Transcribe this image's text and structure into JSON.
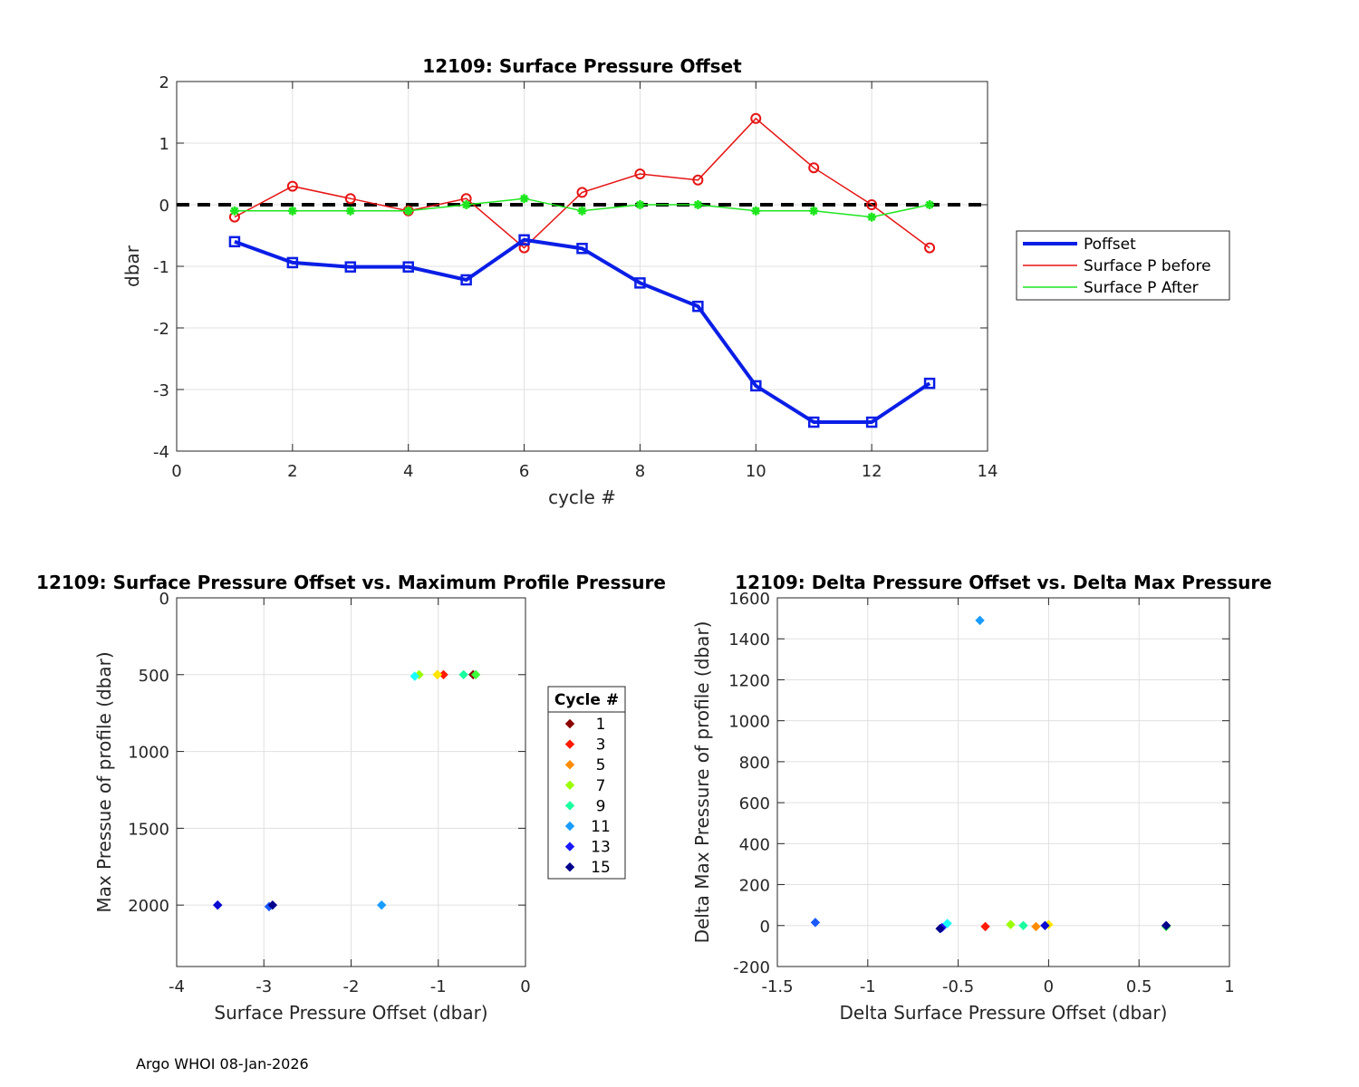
{
  "footer": "Argo WHOI 08-Jan-2026",
  "chart_data": [
    {
      "type": "line",
      "title": "12109: Surface Pressure Offset",
      "xlabel": "cycle #",
      "ylabel": "dbar",
      "xlim": [
        0,
        14
      ],
      "ylim": [
        -4,
        2
      ],
      "xticks": [
        0,
        2,
        4,
        6,
        8,
        10,
        12,
        14
      ],
      "yticks": [
        -4,
        -3,
        -2,
        -1,
        0,
        1,
        2
      ],
      "grid": true,
      "legend_position": "outside-right",
      "x": [
        1,
        2,
        3,
        4,
        5,
        6,
        7,
        8,
        9,
        10,
        11,
        12,
        13
      ],
      "zero_line": {
        "y": 0,
        "color": "#000000",
        "style": "dashed"
      },
      "series": [
        {
          "name": "Poffset",
          "color": "#0a1ee6",
          "marker": "square",
          "values": [
            -0.6,
            -0.94,
            -1.01,
            -1.01,
            -1.22,
            -0.57,
            -0.71,
            -1.27,
            -1.65,
            -2.94,
            -3.53,
            -3.53,
            -2.9
          ]
        },
        {
          "name": "Surface P before",
          "color": "#e61414",
          "marker": "diamond",
          "values": [
            -0.2,
            0.3,
            0.1,
            -0.1,
            0.1,
            -0.7,
            0.2,
            0.5,
            0.4,
            1.4,
            0.6,
            0.0,
            -0.7
          ]
        },
        {
          "name": "Surface P After",
          "color": "#1ee61e",
          "marker": "star",
          "values": [
            -0.1,
            -0.1,
            -0.1,
            -0.1,
            0.0,
            0.1,
            -0.1,
            0.0,
            0.0,
            -0.1,
            -0.1,
            -0.2,
            0.0
          ]
        }
      ]
    },
    {
      "type": "scatter",
      "title": "12109: Surface Pressure Offset vs. Maximum Profile Pressure",
      "xlabel": "Surface Pressure Offset (dbar)",
      "ylabel": "Max Pressue of profile (dbar)",
      "xlim": [
        -4,
        0
      ],
      "ylim": [
        0,
        2400
      ],
      "y_reversed": true,
      "xticks": [
        -4,
        -3,
        -2,
        -1,
        0
      ],
      "yticks": [
        0,
        500,
        1000,
        1500,
        2000
      ],
      "grid": true,
      "legend_title": "Cycle #",
      "legend_position": "outside-right",
      "legend_entries": [
        {
          "label": "1",
          "color": "#8b0000"
        },
        {
          "label": "3",
          "color": "#ff1a00"
        },
        {
          "label": "5",
          "color": "#ff8c00"
        },
        {
          "label": "7",
          "color": "#9aff00"
        },
        {
          "label": "9",
          "color": "#1affa0"
        },
        {
          "label": "11",
          "color": "#1a9cff"
        },
        {
          "label": "13",
          "color": "#1a1aff"
        },
        {
          "label": "15",
          "color": "#00008b"
        }
      ],
      "points": [
        {
          "x": -0.6,
          "y": 500,
          "color": "#8b0000"
        },
        {
          "x": -0.94,
          "y": 500,
          "color": "#ff1a00"
        },
        {
          "x": -1.01,
          "y": 500,
          "color": "#ff8c00"
        },
        {
          "x": -1.01,
          "y": 500,
          "color": "#ffe600"
        },
        {
          "x": -1.22,
          "y": 500,
          "color": "#9aff00"
        },
        {
          "x": -0.57,
          "y": 500,
          "color": "#3cff3c"
        },
        {
          "x": -0.71,
          "y": 500,
          "color": "#1affa0"
        },
        {
          "x": -1.27,
          "y": 510,
          "color": "#1affff"
        },
        {
          "x": -1.65,
          "y": 2000,
          "color": "#1a9cff"
        },
        {
          "x": -2.94,
          "y": 2010,
          "color": "#1a5aff"
        },
        {
          "x": -3.53,
          "y": 2000,
          "color": "#1a1aff"
        },
        {
          "x": -3.53,
          "y": 2000,
          "color": "#0a0ad2"
        },
        {
          "x": -2.9,
          "y": 2000,
          "color": "#00008b"
        }
      ]
    },
    {
      "type": "scatter",
      "title": "12109: Delta Pressure Offset vs. Delta Max Pressure",
      "xlabel": "Delta Surface Pressure Offset (dbar)",
      "ylabel": "Delta Max Pressure of profile (dbar)",
      "xlim": [
        -1.5,
        1
      ],
      "ylim": [
        -200,
        1600
      ],
      "xticks": [
        -1.5,
        -1,
        -0.5,
        0,
        0.5,
        1
      ],
      "xtick_labels": [
        "-1.5",
        "-1",
        "-0.5",
        "0",
        "0.5",
        "1"
      ],
      "yticks": [
        -200,
        0,
        200,
        400,
        600,
        800,
        1000,
        1200,
        1400,
        1600
      ],
      "grid": true,
      "points": [
        {
          "x": -0.35,
          "y": -5,
          "color": "#ff1a00"
        },
        {
          "x": -0.07,
          "y": -5,
          "color": "#ff8c00"
        },
        {
          "x": 0.0,
          "y": 5,
          "color": "#ffe600"
        },
        {
          "x": -0.21,
          "y": 5,
          "color": "#9aff00"
        },
        {
          "x": 0.65,
          "y": -5,
          "color": "#3cff3c"
        },
        {
          "x": -0.14,
          "y": 0,
          "color": "#1affa0"
        },
        {
          "x": -0.56,
          "y": 10,
          "color": "#1affff"
        },
        {
          "x": -0.38,
          "y": 1490,
          "color": "#1a9cff"
        },
        {
          "x": -1.29,
          "y": 15,
          "color": "#1a5aff"
        },
        {
          "x": -0.59,
          "y": -10,
          "color": "#1a1aff"
        },
        {
          "x": -0.02,
          "y": 0,
          "color": "#0a0ad2"
        },
        {
          "x": 0.65,
          "y": 0,
          "color": "#00008b"
        },
        {
          "x": -0.6,
          "y": -15,
          "color": "#00008b"
        }
      ]
    }
  ]
}
